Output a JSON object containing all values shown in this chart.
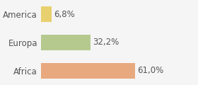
{
  "categories": [
    "America",
    "Europa",
    "Africa"
  ],
  "values": [
    6.8,
    32.2,
    61.0
  ],
  "labels": [
    "6,8%",
    "32,2%",
    "61,0%"
  ],
  "bar_colors": [
    "#e8d06e",
    "#b5c98e",
    "#e8a97e"
  ],
  "background_color": "#f5f5f5",
  "xlim": [
    0,
    100
  ],
  "bar_height": 0.55,
  "label_fontsize": 8.5,
  "tick_fontsize": 8.5
}
